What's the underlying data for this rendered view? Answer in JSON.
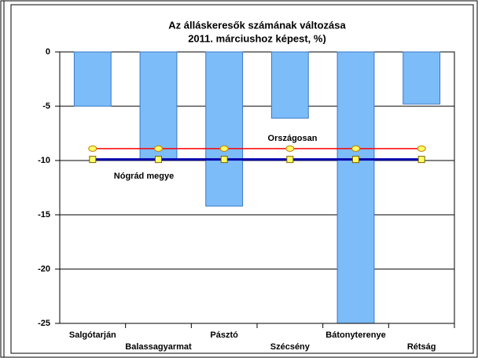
{
  "chart_data": {
    "type": "bar",
    "title": [
      "Az álláskeresők számának változása",
      "2011. márciushoz képest, %)"
    ],
    "categories": [
      "Salgótarján",
      "Balassagyarmat",
      "Pásztó",
      "Szécsény",
      "Bátonyterenye",
      "Rétság"
    ],
    "values": [
      -5,
      -9.9,
      -14.2,
      -6.1,
      -25,
      -4.8
    ],
    "color": "#7cbcf8",
    "series": [
      {
        "name": "Országosan",
        "color": "#ff0000",
        "values": [
          -8.9,
          -8.9,
          -8.9,
          -8.9,
          -8.9,
          -8.9
        ]
      },
      {
        "name": "Nógrád megye",
        "color": "#0000aa",
        "values": [
          -9.9,
          -9.9,
          -9.9,
          -9.9,
          -9.9,
          -9.9
        ]
      }
    ],
    "ylim": [
      -25,
      0
    ],
    "yticks": [
      0,
      -5,
      -10,
      -15,
      -20,
      -25
    ],
    "grid": true
  }
}
